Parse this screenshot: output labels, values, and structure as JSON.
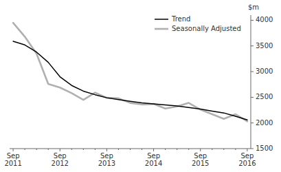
{
  "chart_data": {
    "type": "line",
    "y_label": "$m",
    "categories": [
      "Sep\n2011",
      null,
      null,
      null,
      "Sep\n2012",
      null,
      null,
      null,
      "Sep\n2013",
      null,
      null,
      null,
      "Sep\n2014",
      null,
      null,
      null,
      "Sep\n2015",
      null,
      null,
      null,
      "Sep\n2016"
    ],
    "series": [
      {
        "name": "Trend",
        "color": "#000000",
        "values": [
          3590,
          3520,
          3380,
          3180,
          2900,
          2730,
          2620,
          2550,
          2490,
          2455,
          2420,
          2390,
          2370,
          2350,
          2330,
          2300,
          2270,
          2230,
          2195,
          2130,
          2060
        ]
      },
      {
        "name": "Seasonally Adjusted",
        "color": "#b0b0b0",
        "values": [
          3950,
          3680,
          3350,
          2760,
          2690,
          2580,
          2450,
          2590,
          2490,
          2480,
          2390,
          2360,
          2370,
          2280,
          2320,
          2390,
          2260,
          2170,
          2080,
          2170,
          2030
        ]
      }
    ],
    "ylim": [
      1500,
      4100
    ],
    "yticks": [
      1500,
      2000,
      2500,
      3000,
      3500,
      4000
    ],
    "grid": false,
    "legend": "upper right"
  }
}
